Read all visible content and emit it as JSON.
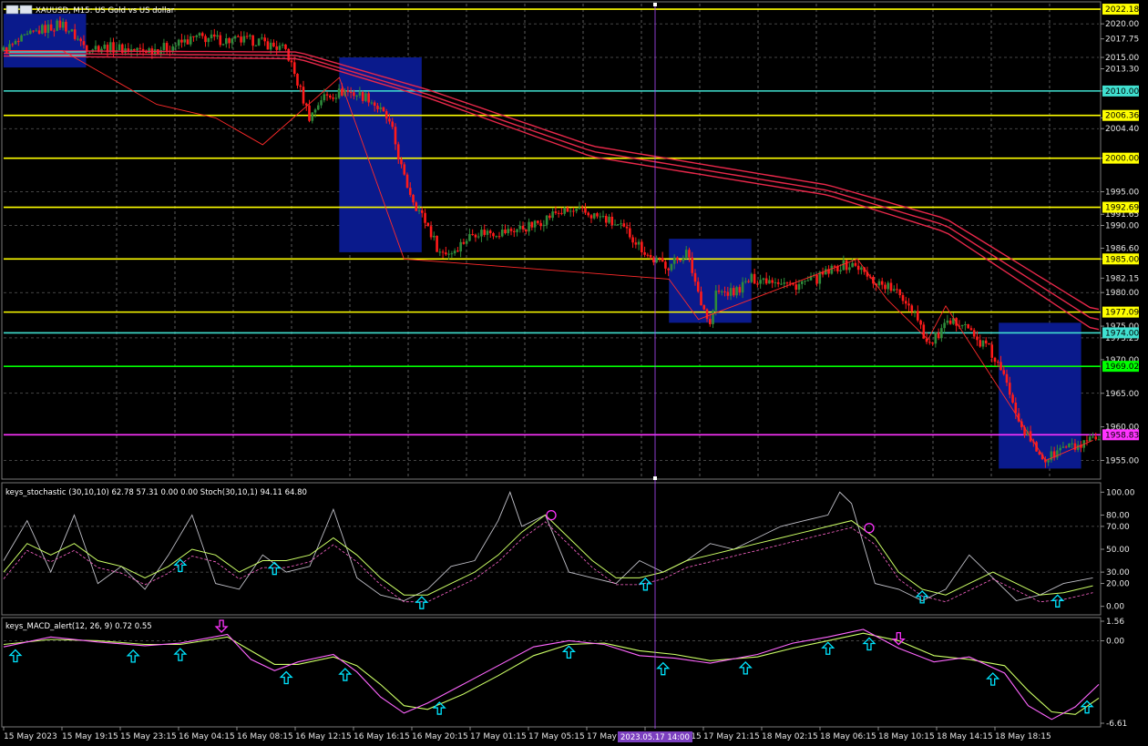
{
  "header": {
    "symbol_title": "XAUUSD, M15: US Gold vs US dollar",
    "stoch_title": "keys_stochastic (30,10,10) 62.78 57.31 0.00 0.00 Stoch(30,10,1) 94.11 64.80",
    "macd_title": "keys_MACD_alert(12, 26, 9) 0.72 0.55"
  },
  "colors": {
    "background": "#000000",
    "bull": "#2e8b3a",
    "bear": "#ff1a1a",
    "ma": "#e8284a",
    "box": "#0a1a8c",
    "level_yellow": "#ffff00",
    "level_cyan": "#40e0d0",
    "level_green": "#00ff00",
    "level_magenta": "#ff33ff",
    "stoch_main": "#c0c0c8",
    "stoch_signal": "#ccff66",
    "macd_main": "#ff66ff",
    "macd_signal": "#ccff66",
    "arrow_up": "#00e5ff",
    "arrow_down": "#ff33ff"
  },
  "price_axis": {
    "ylim": [
      1952.5,
      2023.0
    ],
    "ticks": [
      "2020.00",
      "2017.75",
      "2015.00",
      "2013.30",
      "2010.00",
      "2006.00",
      "2004.40",
      "2000.00",
      "1995.00",
      "1991.65",
      "1990.00",
      "1986.60",
      "1985.00",
      "1982.15",
      "1980.00",
      "1975.00",
      "1973.25",
      "1970.00",
      "1965.00",
      "1960.00",
      "1955.00"
    ]
  },
  "levels": [
    {
      "price": 2022.18,
      "label": "2022.18",
      "color": "#ffff00"
    },
    {
      "price": 2010.0,
      "label": "2010.00",
      "color": "#40e0d0"
    },
    {
      "price": 2006.36,
      "label": "2006.36",
      "color": "#ffff00"
    },
    {
      "price": 2000.0,
      "label": "2000.00",
      "color": "#ffff00"
    },
    {
      "price": 1992.69,
      "label": "1992.69",
      "color": "#ffff00"
    },
    {
      "price": 1985.0,
      "label": "1985.00",
      "color": "#ffff00"
    },
    {
      "price": 1977.09,
      "label": "1977.09",
      "color": "#ffff00"
    },
    {
      "price": 1974.0,
      "label": "1974.00",
      "color": "#40e0d0"
    },
    {
      "price": 1969.02,
      "label": "1969.02",
      "color": "#00ff00"
    },
    {
      "price": 1958.83,
      "label": "1958.83",
      "color": "#ff33ff"
    }
  ],
  "time_axis": {
    "labels": [
      "15 May 2023",
      "15 May 19:15",
      "15 May 23:15",
      "16 May 04:15",
      "16 May 08:15",
      "16 May 12:15",
      "16 May 16:15",
      "16 May 20:15",
      "17 May 01:15",
      "17 May 05:15",
      "17 May",
      "17 May 17:15",
      "17 May 21:15",
      "18 May 02:15",
      "18 May 06:15",
      "18 May 10:15",
      "18 May 14:15",
      "18 May 18:15"
    ],
    "cursor_label": "2023.05.17 14:00"
  },
  "stoch_axis": {
    "ylim": [
      -5,
      105
    ],
    "ticks": [
      "100.00",
      "80.00",
      "70.00",
      "50.00",
      "30.00",
      "20.00",
      "0.00"
    ]
  },
  "macd_axis": {
    "ylim": [
      -6.61,
      1.56
    ],
    "ticks": [
      "1.56",
      "0.00",
      "-6.61"
    ]
  },
  "chart_data": {
    "type": "candlestick",
    "symbol": "XAUUSD",
    "timeframe": "M15",
    "close_path": [
      [
        0,
        2016
      ],
      [
        6,
        2019
      ],
      [
        10,
        2020
      ],
      [
        14,
        2016.5
      ],
      [
        18,
        2016.5
      ],
      [
        23,
        2016
      ],
      [
        28,
        2016.5
      ],
      [
        33,
        2018
      ],
      [
        38,
        2017.5
      ],
      [
        43,
        2017.5
      ],
      [
        48,
        2016
      ],
      [
        52,
        2006
      ],
      [
        54,
        2009
      ],
      [
        58,
        2010
      ],
      [
        62,
        2009
      ],
      [
        65,
        2006
      ],
      [
        66,
        2004
      ],
      [
        68,
        1997
      ],
      [
        70,
        1993
      ],
      [
        72,
        1990
      ],
      [
        74,
        1986
      ],
      [
        76,
        1986
      ],
      [
        80,
        1989
      ],
      [
        85,
        1989
      ],
      [
        90,
        1990
      ],
      [
        94,
        1992
      ],
      [
        98,
        1992
      ],
      [
        102,
        1991
      ],
      [
        106,
        1989
      ],
      [
        110,
        1985
      ],
      [
        113,
        1984
      ],
      [
        116,
        1986
      ],
      [
        118,
        1980
      ],
      [
        120,
        1975
      ],
      [
        121,
        1980
      ],
      [
        124,
        1980
      ],
      [
        127,
        1982
      ],
      [
        131,
        1982
      ],
      [
        134,
        1981
      ],
      [
        138,
        1982
      ],
      [
        142,
        1984
      ],
      [
        145,
        1984
      ],
      [
        147,
        1982
      ],
      [
        150,
        1981
      ],
      [
        153,
        1979
      ],
      [
        155,
        1977
      ],
      [
        157,
        1972
      ],
      [
        160,
        1975
      ],
      [
        163,
        1976
      ],
      [
        165,
        1973
      ],
      [
        167,
        1972
      ],
      [
        169,
        1969
      ],
      [
        171,
        1965
      ],
      [
        173,
        1960
      ],
      [
        175,
        1957
      ],
      [
        177,
        1955
      ],
      [
        180,
        1957
      ],
      [
        183,
        1957
      ],
      [
        185,
        1958
      ]
    ],
    "ma_paths": [
      [
        [
          0,
          2015.2
        ],
        [
          50,
          2014.8
        ],
        [
          72,
          2009
        ],
        [
          100,
          2000.2
        ],
        [
          140,
          1994.5
        ],
        [
          160,
          1989
        ],
        [
          185,
          1974.5
        ]
      ],
      [
        [
          0,
          2015.6
        ],
        [
          50,
          2015.3
        ],
        [
          72,
          2009.5
        ],
        [
          100,
          2001
        ],
        [
          140,
          1995.2
        ],
        [
          160,
          1990
        ],
        [
          185,
          1976
        ]
      ],
      [
        [
          0,
          2016
        ],
        [
          50,
          2015.8
        ],
        [
          72,
          2010.2
        ],
        [
          100,
          2001.8
        ],
        [
          140,
          1996
        ],
        [
          160,
          1991
        ],
        [
          185,
          1977.5
        ]
      ]
    ],
    "zigzag": [
      [
        0,
        2016
      ],
      [
        10,
        2016
      ],
      [
        26,
        2008
      ],
      [
        36,
        2006
      ],
      [
        44,
        2002
      ],
      [
        57,
        2012
      ],
      [
        68,
        1985
      ],
      [
        113,
        1982
      ],
      [
        118,
        1976
      ],
      [
        145,
        1985
      ],
      [
        150,
        1979
      ],
      [
        157,
        1973
      ],
      [
        160,
        1978
      ],
      [
        177,
        1955
      ],
      [
        185,
        1958
      ]
    ],
    "boxes": [
      {
        "t0": 0,
        "t1": 14,
        "p_hi": 2021.5,
        "p_lo": 2013.5
      },
      {
        "t0": 57,
        "t1": 71,
        "p_hi": 2015.0,
        "p_lo": 1986.0
      },
      {
        "t0": 113,
        "t1": 127,
        "p_hi": 1988.0,
        "p_lo": 1975.5
      },
      {
        "t0": 169,
        "t1": 183,
        "p_hi": 1975.5,
        "p_lo": 1953.8
      }
    ],
    "stoch_main": [
      [
        0,
        40
      ],
      [
        4,
        75
      ],
      [
        8,
        30
      ],
      [
        12,
        80
      ],
      [
        16,
        20
      ],
      [
        20,
        35
      ],
      [
        24,
        15
      ],
      [
        28,
        45
      ],
      [
        32,
        80
      ],
      [
        36,
        20
      ],
      [
        40,
        15
      ],
      [
        44,
        45
      ],
      [
        48,
        30
      ],
      [
        52,
        35
      ],
      [
        56,
        85
      ],
      [
        60,
        25
      ],
      [
        64,
        10
      ],
      [
        68,
        5
      ],
      [
        72,
        15
      ],
      [
        76,
        35
      ],
      [
        80,
        40
      ],
      [
        84,
        75
      ],
      [
        86,
        100
      ],
      [
        88,
        70
      ],
      [
        92,
        80
      ],
      [
        96,
        30
      ],
      [
        100,
        25
      ],
      [
        104,
        20
      ],
      [
        108,
        40
      ],
      [
        112,
        30
      ],
      [
        116,
        40
      ],
      [
        120,
        55
      ],
      [
        124,
        50
      ],
      [
        128,
        60
      ],
      [
        132,
        70
      ],
      [
        136,
        75
      ],
      [
        140,
        80
      ],
      [
        142,
        100
      ],
      [
        144,
        90
      ],
      [
        148,
        20
      ],
      [
        152,
        15
      ],
      [
        156,
        5
      ],
      [
        160,
        15
      ],
      [
        164,
        45
      ],
      [
        168,
        25
      ],
      [
        172,
        5
      ],
      [
        176,
        10
      ],
      [
        180,
        20
      ],
      [
        185,
        25
      ]
    ],
    "stoch_signal": [
      [
        0,
        30
      ],
      [
        4,
        55
      ],
      [
        8,
        45
      ],
      [
        12,
        55
      ],
      [
        16,
        40
      ],
      [
        20,
        35
      ],
      [
        24,
        25
      ],
      [
        28,
        35
      ],
      [
        32,
        50
      ],
      [
        36,
        45
      ],
      [
        40,
        30
      ],
      [
        44,
        40
      ],
      [
        48,
        40
      ],
      [
        52,
        45
      ],
      [
        56,
        60
      ],
      [
        60,
        45
      ],
      [
        64,
        25
      ],
      [
        68,
        10
      ],
      [
        72,
        10
      ],
      [
        76,
        20
      ],
      [
        80,
        30
      ],
      [
        84,
        45
      ],
      [
        88,
        65
      ],
      [
        92,
        80
      ],
      [
        96,
        60
      ],
      [
        100,
        40
      ],
      [
        104,
        25
      ],
      [
        108,
        25
      ],
      [
        112,
        30
      ],
      [
        116,
        40
      ],
      [
        120,
        45
      ],
      [
        124,
        50
      ],
      [
        128,
        55
      ],
      [
        132,
        60
      ],
      [
        136,
        65
      ],
      [
        140,
        70
      ],
      [
        144,
        75
      ],
      [
        148,
        60
      ],
      [
        152,
        30
      ],
      [
        156,
        15
      ],
      [
        160,
        10
      ],
      [
        164,
        20
      ],
      [
        168,
        30
      ],
      [
        172,
        20
      ],
      [
        176,
        10
      ],
      [
        180,
        12
      ],
      [
        185,
        18
      ]
    ],
    "stoch_up_arrows": [
      30,
      46,
      71,
      109,
      156,
      179
    ],
    "stoch_down_arrows": [
      93,
      147
    ],
    "macd_main": [
      [
        0,
        -0.5
      ],
      [
        8,
        0.3
      ],
      [
        16,
        -0.1
      ],
      [
        24,
        -0.4
      ],
      [
        30,
        -0.2
      ],
      [
        38,
        0.5
      ],
      [
        42,
        -1.5
      ],
      [
        46,
        -2.4
      ],
      [
        50,
        -1.7
      ],
      [
        56,
        -1.1
      ],
      [
        60,
        -2.5
      ],
      [
        64,
        -4.5
      ],
      [
        68,
        -5.8
      ],
      [
        72,
        -5
      ],
      [
        78,
        -3.5
      ],
      [
        84,
        -2
      ],
      [
        90,
        -0.5
      ],
      [
        96,
        0
      ],
      [
        102,
        -0.3
      ],
      [
        108,
        -1.2
      ],
      [
        114,
        -1.4
      ],
      [
        120,
        -1.8
      ],
      [
        128,
        -1.1
      ],
      [
        134,
        -0.2
      ],
      [
        140,
        0.3
      ],
      [
        146,
        0.9
      ],
      [
        152,
        -0.6
      ],
      [
        158,
        -1.7
      ],
      [
        164,
        -1.3
      ],
      [
        170,
        -2.6
      ],
      [
        174,
        -5.2
      ],
      [
        178,
        -6.3
      ],
      [
        182,
        -5.3
      ],
      [
        186,
        -3.5
      ]
    ],
    "macd_signal": [
      [
        0,
        -0.3
      ],
      [
        8,
        0.1
      ],
      [
        16,
        0
      ],
      [
        24,
        -0.3
      ],
      [
        30,
        -0.3
      ],
      [
        38,
        0.3
      ],
      [
        42,
        -0.8
      ],
      [
        46,
        -1.9
      ],
      [
        50,
        -1.9
      ],
      [
        56,
        -1.3
      ],
      [
        60,
        -2.0
      ],
      [
        64,
        -3.5
      ],
      [
        68,
        -5.2
      ],
      [
        72,
        -5.5
      ],
      [
        78,
        -4.3
      ],
      [
        84,
        -2.8
      ],
      [
        90,
        -1.2
      ],
      [
        96,
        -0.3
      ],
      [
        102,
        -0.2
      ],
      [
        108,
        -0.8
      ],
      [
        114,
        -1.1
      ],
      [
        120,
        -1.6
      ],
      [
        128,
        -1.3
      ],
      [
        134,
        -0.6
      ],
      [
        140,
        0
      ],
      [
        146,
        0.6
      ],
      [
        152,
        0
      ],
      [
        158,
        -1.2
      ],
      [
        164,
        -1.5
      ],
      [
        170,
        -2.0
      ],
      [
        174,
        -4.0
      ],
      [
        178,
        -5.7
      ],
      [
        182,
        -5.9
      ],
      [
        186,
        -4.6
      ]
    ],
    "macd_up_arrows": [
      2,
      22,
      30,
      48,
      58,
      74,
      96,
      112,
      126,
      140,
      147,
      168,
      184
    ],
    "macd_down_arrows": [
      37,
      152
    ]
  }
}
